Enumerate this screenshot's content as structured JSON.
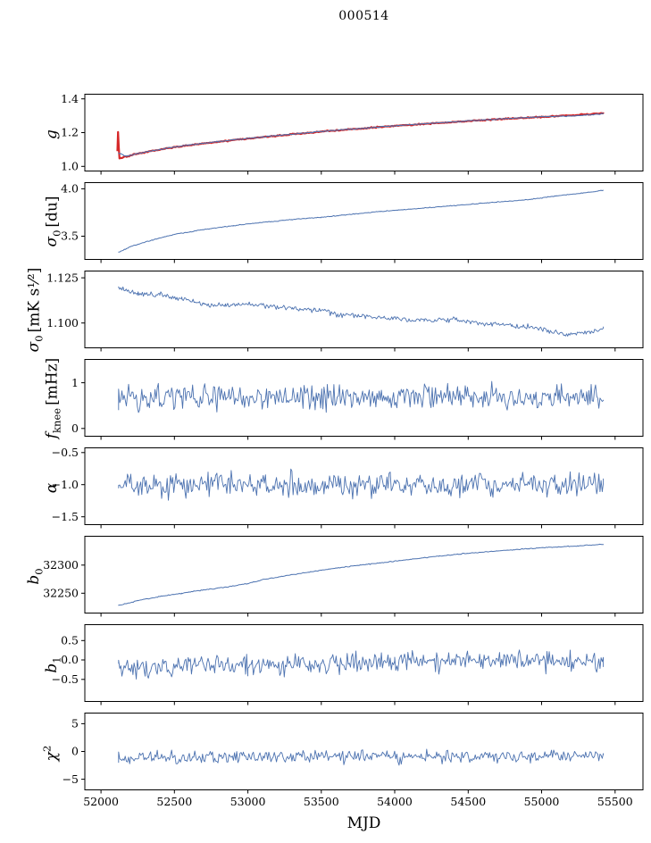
{
  "title": "000514",
  "xlabel": "MJD",
  "chart_data": {
    "type": "line",
    "title": "000514",
    "xlabel": "MJD",
    "legend": "none",
    "grid": false,
    "xlim": [
      51890,
      55690
    ],
    "xticks": [
      52000,
      52500,
      53000,
      53500,
      54000,
      54500,
      55000,
      55500
    ],
    "xtick_labels": [
      "52000",
      "52500",
      "53000",
      "53500",
      "54000",
      "54500",
      "55000",
      "55500"
    ],
    "panels": [
      {
        "name": "g",
        "ylabel": {
          "sym": "g",
          "sub": "",
          "sup": "",
          "unit": ""
        },
        "ylim": [
          0.97,
          1.43
        ],
        "yticks": [
          {
            "v": 1.0,
            "label": "1.0"
          },
          {
            "v": 1.2,
            "label": "1.2"
          },
          {
            "v": 1.4,
            "label": "1.4"
          }
        ],
        "series": [
          {
            "name": "g-red",
            "color": "#d62728",
            "width": 2.2,
            "noise": 0.005,
            "seed": 7,
            "n": 420,
            "trend": [
              [
                52112,
                1.09
              ],
              [
                52116,
                1.205
              ],
              [
                52121,
                1.115
              ],
              [
                52126,
                1.048
              ],
              [
                52170,
                1.058
              ],
              [
                52250,
                1.075
              ],
              [
                52400,
                1.1
              ],
              [
                52600,
                1.126
              ],
              [
                52900,
                1.156
              ],
              [
                53200,
                1.182
              ],
              [
                53500,
                1.206
              ],
              [
                53800,
                1.226
              ],
              [
                54100,
                1.246
              ],
              [
                54400,
                1.263
              ],
              [
                54700,
                1.279
              ],
              [
                55000,
                1.293
              ],
              [
                55200,
                1.302
              ],
              [
                55420,
                1.315
              ]
            ]
          },
          {
            "name": "g-blue",
            "color": "#4c72b0",
            "width": 1.1,
            "noise": 0.004,
            "seed": 3,
            "n": 420,
            "trend": [
              [
                52120,
                1.08
              ],
              [
                52170,
                1.06
              ],
              [
                52250,
                1.076
              ],
              [
                52400,
                1.101
              ],
              [
                52600,
                1.127
              ],
              [
                52900,
                1.157
              ],
              [
                53200,
                1.183
              ],
              [
                53500,
                1.207
              ],
              [
                53800,
                1.227
              ],
              [
                54100,
                1.247
              ],
              [
                54400,
                1.264
              ],
              [
                54700,
                1.28
              ],
              [
                55000,
                1.294
              ],
              [
                55150,
                1.298
              ],
              [
                55250,
                1.3
              ],
              [
                55350,
                1.307
              ],
              [
                55420,
                1.313
              ]
            ]
          }
        ]
      },
      {
        "name": "sigma0-du",
        "ylabel": {
          "sym": "σ",
          "sub": "0",
          "sup": "",
          "unit": "[du]"
        },
        "ylim": [
          3.25,
          4.07
        ],
        "yticks": [
          {
            "v": 3.5,
            "label": "3.5"
          },
          {
            "v": 4.0,
            "label": "4.0"
          }
        ],
        "series": [
          {
            "name": "sigma0-du",
            "color": "#4c72b0",
            "width": 1.0,
            "noise": 0.006,
            "seed": 11,
            "n": 420,
            "trend": [
              [
                52120,
                3.33
              ],
              [
                52200,
                3.39
              ],
              [
                52350,
                3.46
              ],
              [
                52500,
                3.52
              ],
              [
                52700,
                3.57
              ],
              [
                52900,
                3.61
              ],
              [
                53100,
                3.645
              ],
              [
                53300,
                3.675
              ],
              [
                53500,
                3.7
              ],
              [
                53700,
                3.73
              ],
              [
                53900,
                3.76
              ],
              [
                54100,
                3.785
              ],
              [
                54300,
                3.81
              ],
              [
                54500,
                3.835
              ],
              [
                54700,
                3.86
              ],
              [
                54900,
                3.885
              ],
              [
                55100,
                3.925
              ],
              [
                55250,
                3.95
              ],
              [
                55420,
                3.985
              ]
            ]
          }
        ]
      },
      {
        "name": "sigma0-mks",
        "ylabel": {
          "sym": "σ",
          "sub": "0",
          "sup": "",
          "unit": "[mK s¹⁄²]"
        },
        "ylim": [
          1.086,
          1.129
        ],
        "yticks": [
          {
            "v": 1.1,
            "label": "1.100"
          },
          {
            "v": 1.125,
            "label": "1.125"
          }
        ],
        "series": [
          {
            "name": "sigma0-mks",
            "color": "#4c72b0",
            "width": 0.9,
            "noise": 0.0022,
            "seed": 13,
            "n": 450,
            "trend": [
              [
                52120,
                1.119
              ],
              [
                52250,
                1.1165
              ],
              [
                52400,
                1.1155
              ],
              [
                52550,
                1.1135
              ],
              [
                52700,
                1.1105
              ],
              [
                52850,
                1.1095
              ],
              [
                53000,
                1.1105
              ],
              [
                53150,
                1.1095
              ],
              [
                53300,
                1.108
              ],
              [
                53450,
                1.1075
              ],
              [
                53600,
                1.105
              ],
              [
                53800,
                1.1035
              ],
              [
                54000,
                1.1025
              ],
              [
                54200,
                1.1015
              ],
              [
                54400,
                1.102
              ],
              [
                54600,
                1.0995
              ],
              [
                54800,
                1.0985
              ],
              [
                55000,
                1.097
              ],
              [
                55150,
                1.0935
              ],
              [
                55300,
                1.095
              ],
              [
                55420,
                1.0965
              ]
            ]
          }
        ]
      },
      {
        "name": "fknee",
        "ylabel": {
          "sym": "f",
          "sub": "knee",
          "sup": "",
          "unit": "[mHz]"
        },
        "ylim": [
          -0.18,
          1.52
        ],
        "yticks": [
          {
            "v": 0,
            "label": "0"
          },
          {
            "v": 1,
            "label": "1"
          }
        ],
        "series": [
          {
            "name": "fknee",
            "color": "#4c72b0",
            "width": 0.9,
            "noise": 0.4,
            "seed": 17,
            "n": 440,
            "trend": [
              [
                52120,
                0.68
              ],
              [
                55420,
                0.68
              ]
            ]
          }
        ]
      },
      {
        "name": "alpha",
        "ylabel": {
          "sym": "α",
          "sub": "",
          "sup": "",
          "unit": ""
        },
        "ylim": [
          -1.63,
          -0.42
        ],
        "yticks": [
          {
            "v": -0.5,
            "label": "−0.5"
          },
          {
            "v": -1.0,
            "label": "−1.0"
          },
          {
            "v": -1.5,
            "label": "−1.5"
          }
        ],
        "series": [
          {
            "name": "alpha",
            "color": "#4c72b0",
            "width": 0.9,
            "noise": 0.28,
            "seed": 19,
            "n": 440,
            "trend": [
              [
                52120,
                -1.0
              ],
              [
                55420,
                -1.0
              ]
            ]
          }
        ]
      },
      {
        "name": "b0",
        "ylabel": {
          "sym": "b",
          "sub": "0",
          "sup": "",
          "unit": ""
        },
        "ylim": [
          32214,
          32352
        ],
        "yticks": [
          {
            "v": 32250,
            "label": "32250"
          },
          {
            "v": 32300,
            "label": "32300"
          }
        ],
        "series": [
          {
            "name": "b0",
            "color": "#4c72b0",
            "width": 1.0,
            "noise": 1.2,
            "seed": 23,
            "n": 400,
            "trend": [
              [
                52120,
                32228
              ],
              [
                52250,
                32237
              ],
              [
                52400,
                32244
              ],
              [
                52550,
                32250
              ],
              [
                52700,
                32256
              ],
              [
                52850,
                32261
              ],
              [
                53000,
                32267
              ],
              [
                53100,
                32274
              ],
              [
                53300,
                32283
              ],
              [
                53500,
                32291
              ],
              [
                53700,
                32298
              ],
              [
                53900,
                32304
              ],
              [
                54100,
                32310
              ],
              [
                54300,
                32316
              ],
              [
                54500,
                32321
              ],
              [
                54700,
                32325
              ],
              [
                54900,
                32329
              ],
              [
                55100,
                32332
              ],
              [
                55250,
                32334
              ],
              [
                55420,
                32337
              ]
            ]
          }
        ]
      },
      {
        "name": "b1",
        "ylabel": {
          "sym": "b",
          "sub": "1",
          "sup": "",
          "unit": ""
        },
        "ylim": [
          -1.08,
          0.92
        ],
        "yticks": [
          {
            "v": -0.5,
            "label": "−0.5"
          },
          {
            "v": 0.0,
            "label": "0.0"
          },
          {
            "v": 0.5,
            "label": "0.5"
          }
        ],
        "series": [
          {
            "name": "b1",
            "color": "#4c72b0",
            "width": 0.9,
            "noise": 0.38,
            "seed": 29,
            "n": 440,
            "trend": [
              [
                52120,
                -0.18
              ],
              [
                53000,
                -0.14
              ],
              [
                54000,
                -0.07
              ],
              [
                55420,
                -0.02
              ]
            ]
          }
        ]
      },
      {
        "name": "chi2",
        "ylabel": {
          "sym": "χ",
          "sub": "",
          "sup": "2",
          "unit": ""
        },
        "ylim": [
          -7,
          7
        ],
        "yticks": [
          {
            "v": -5,
            "label": "−5"
          },
          {
            "v": 0,
            "label": "0"
          },
          {
            "v": 5,
            "label": "5"
          }
        ],
        "series": [
          {
            "name": "chi2",
            "color": "#4c72b0",
            "width": 0.9,
            "noise": 1.7,
            "seed": 31,
            "n": 440,
            "trend": [
              [
                52120,
                -1.1
              ],
              [
                55420,
                -0.8
              ]
            ]
          }
        ]
      }
    ]
  }
}
